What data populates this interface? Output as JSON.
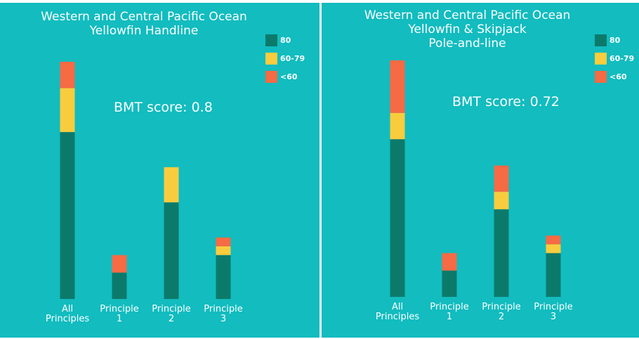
{
  "colors": {
    "background": "#12bcbf",
    "score_80": "#0c7a6b",
    "score_60_79": "#f9cc3e",
    "score_lt60": "#f66a44"
  },
  "panels": [
    {
      "title_lines": [
        "Western and Central Pacific Ocean",
        "Yellowfin Handline"
      ],
      "score_text": "BMT score: 0.8",
      "legend": [
        "80",
        "60-79",
        "<60"
      ]
    },
    {
      "title_lines": [
        "Western and Central Pacific Ocean",
        "Yellowfin & Skipjack",
        "Pole-and-line"
      ],
      "score_text": "BMT score: 0.72",
      "legend": [
        "80",
        "60-79",
        "<60"
      ]
    }
  ],
  "chart_data": [
    {
      "type": "bar",
      "stacked": true,
      "title": "Western and Central Pacific Ocean Yellowfin Handline",
      "annotation": "BMT score: 0.8",
      "categories": [
        "All Principles",
        "Principle 1",
        "Principle 2",
        "Principle 3"
      ],
      "category_lines": [
        [
          "All",
          "Principles"
        ],
        [
          "Principle",
          "1"
        ],
        [
          "Principle",
          "2"
        ],
        [
          "Principle",
          "3"
        ]
      ],
      "series": [
        {
          "name": "80",
          "color": "#0c7a6b",
          "values": [
            19,
            3,
            11,
            5
          ]
        },
        {
          "name": "60-79",
          "color": "#f9cc3e",
          "values": [
            5,
            0,
            4,
            1
          ]
        },
        {
          "name": "<60",
          "color": "#f66a44",
          "values": [
            3,
            2,
            0,
            1
          ]
        }
      ],
      "ylim": [
        0,
        27
      ],
      "legend_position": "top-right",
      "grid": false
    },
    {
      "type": "bar",
      "stacked": true,
      "title": "Western and Central Pacific Ocean Yellowfin & Skipjack Pole-and-line",
      "annotation": "BMT score: 0.72",
      "categories": [
        "All Principles",
        "Principle 1",
        "Principle 2",
        "Principle 3"
      ],
      "category_lines": [
        [
          "All",
          "Principles"
        ],
        [
          "Principle",
          "1"
        ],
        [
          "Principle",
          "2"
        ],
        [
          "Principle",
          "3"
        ]
      ],
      "series": [
        {
          "name": "80",
          "color": "#0c7a6b",
          "values": [
            18,
            3,
            10,
            5
          ]
        },
        {
          "name": "60-79",
          "color": "#f9cc3e",
          "values": [
            3,
            0,
            2,
            1
          ]
        },
        {
          "name": "<60",
          "color": "#f66a44",
          "values": [
            6,
            2,
            3,
            1
          ]
        }
      ],
      "ylim": [
        0,
        27
      ],
      "legend_position": "top-right",
      "grid": false
    }
  ]
}
